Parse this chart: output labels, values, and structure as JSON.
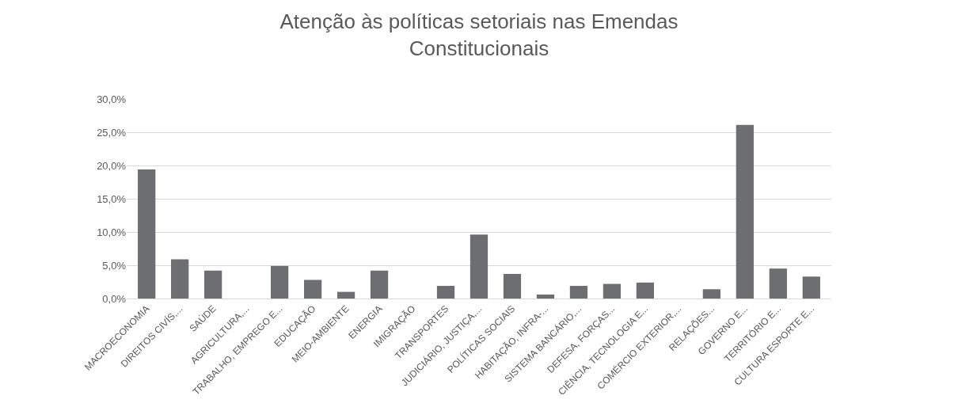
{
  "chart_data": {
    "type": "bar",
    "title": "Atenção às políticas setoriais nas Emendas Constitucionais",
    "categories": [
      "MACROECONOMIA",
      "DIREITOS CIVÍS,...",
      "SAÚDE",
      "AGRICULTURA,...",
      "TRABALHO, EMPREGO E...",
      "EDUCAÇÃO",
      "MEIO-AMBIENTE",
      "ENERGIA",
      "IMIGRAÇÃO",
      "TRANSPORTES",
      "JUDICIÁRIO, JUSTIÇA,...",
      "POLÍTICAS SOCIAIS",
      "HABITAÇÃO, INFRA-...",
      "SISTEMA BANCÁRIO,...",
      "DEFESA, FORÇAS...",
      "CIÊNCIA, TECNOLOGIA E...",
      "COMÉRCIO EXTERIOR,...",
      "RELAÇÕES...",
      "GOVERNO E...",
      "TERRITÓRIO E...",
      "CULTURA ESPORTE E..."
    ],
    "values": [
      19.4,
      5.9,
      4.2,
      0,
      4.9,
      2.8,
      1.0,
      4.2,
      0,
      1.9,
      9.6,
      3.7,
      0.6,
      1.9,
      2.2,
      2.4,
      0,
      1.4,
      26.1,
      4.5,
      3.3
    ],
    "color": "#6d6e71",
    "ylim": [
      0,
      30
    ],
    "yticks": [
      {
        "value": 0,
        "label": "0,0%"
      },
      {
        "value": 5,
        "label": "5,0%"
      },
      {
        "value": 10,
        "label": "10,0%"
      },
      {
        "value": 15,
        "label": "15,0%"
      },
      {
        "value": 20,
        "label": "20,0%"
      },
      {
        "value": 25,
        "label": "25,0%"
      },
      {
        "value": 30,
        "label": "30,0%"
      }
    ],
    "grid": "y",
    "legend": false
  }
}
